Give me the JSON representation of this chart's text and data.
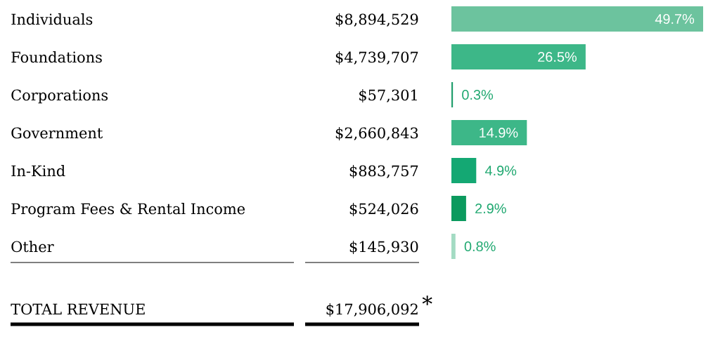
{
  "chart_data": {
    "type": "bar",
    "orientation": "horizontal",
    "categories": [
      "Individuals",
      "Foundations",
      "Corporations",
      "Government",
      "In-Kind",
      "Program Fees & Rental Income",
      "Other"
    ],
    "values": [
      49.7,
      26.5,
      0.3,
      14.9,
      4.9,
      2.9,
      0.8
    ],
    "value_labels": [
      "49.7%",
      "26.5%",
      "0.3%",
      "14.9%",
      "4.9%",
      "2.9%",
      "0.8%"
    ],
    "colors": [
      "#6cc39e",
      "#3db788",
      "#1f9e6c",
      "#3db788",
      "#14a873",
      "#0b9a5e",
      "#a3dbc3"
    ],
    "annotations": [
      "$8,894,529",
      "$4,739,707",
      "$57,301",
      "$2,660,843",
      "$883,757",
      "$524,026",
      "$145,930",
      "TOTAL REVENUE",
      "$17,906,092",
      "*"
    ]
  }
}
